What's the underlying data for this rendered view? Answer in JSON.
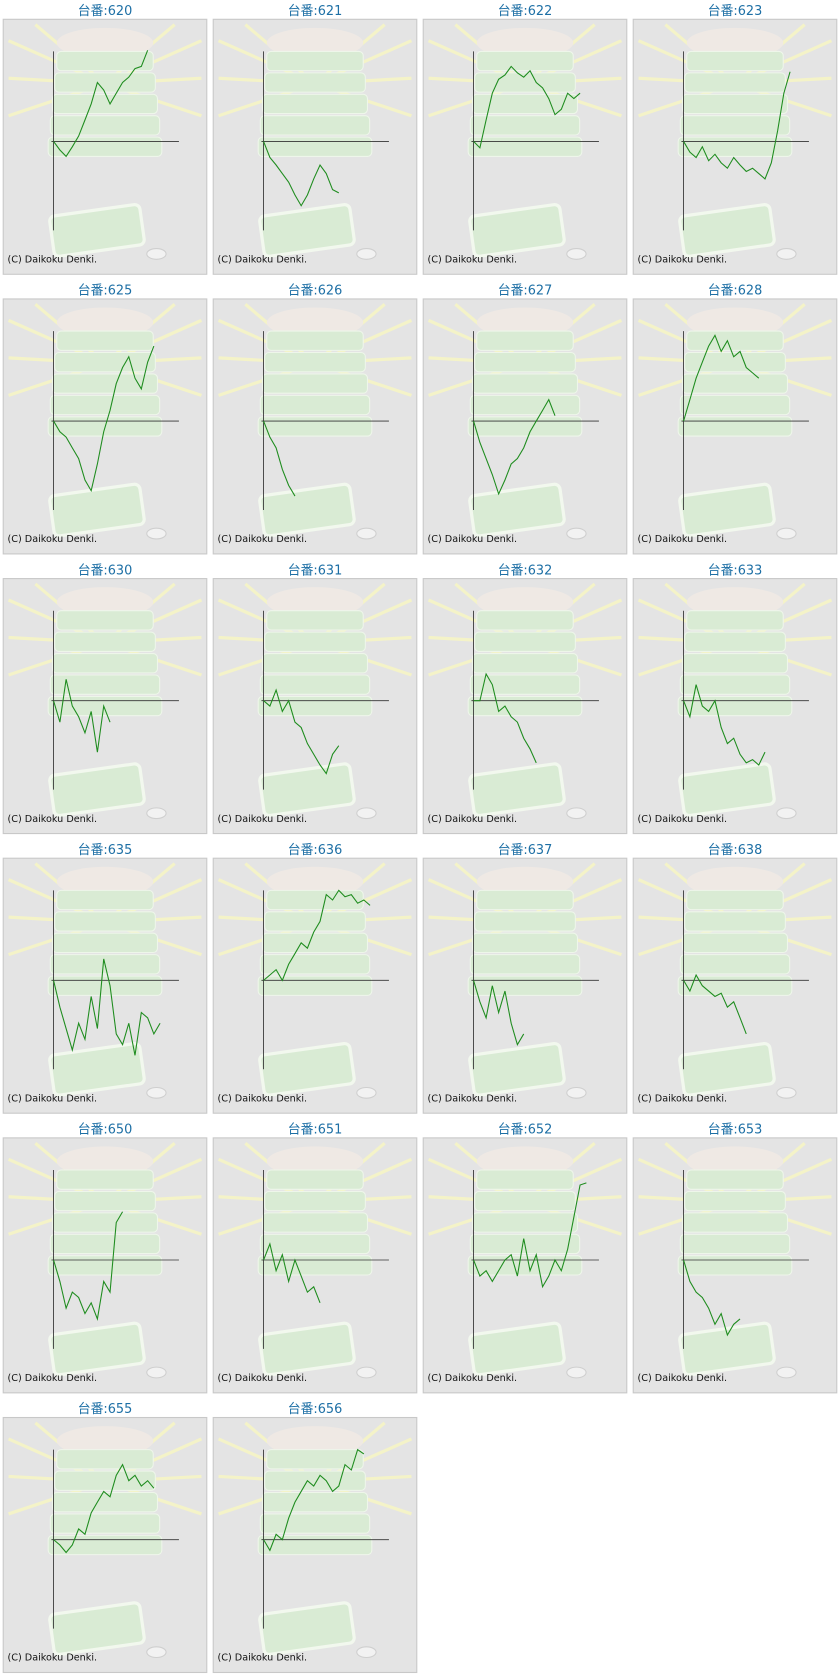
{
  "chart_data": [
    {
      "type": "line",
      "title": "台番:620",
      "credit": "(C) Daikoku Denki.",
      "color": "#1e8c1e",
      "xlim": [
        0,
        20
      ],
      "ylim": [
        -83,
        84
      ],
      "values": [
        0,
        -8,
        -14,
        -5,
        5,
        20,
        35,
        55,
        48,
        35,
        45,
        55,
        60,
        68,
        70,
        85
      ]
    },
    {
      "type": "line",
      "title": "台番:621",
      "credit": "(C) Daikoku Denki.",
      "color": "#1e8c1e",
      "xlim": [
        0,
        20
      ],
      "ylim": [
        -83,
        84
      ],
      "values": [
        0,
        -15,
        -22,
        -30,
        -38,
        -50,
        -60,
        -50,
        -35,
        -22,
        -30,
        -45,
        -48
      ]
    },
    {
      "type": "line",
      "title": "台番:622",
      "credit": "(C) Daikoku Denki.",
      "color": "#1e8c1e",
      "xlim": [
        0,
        20
      ],
      "ylim": [
        -83,
        84
      ],
      "values": [
        0,
        -6,
        20,
        45,
        58,
        62,
        70,
        64,
        60,
        66,
        55,
        50,
        40,
        25,
        30,
        45,
        40,
        45
      ]
    },
    {
      "type": "line",
      "title": "台番:623",
      "credit": "(C) Daikoku Denki.",
      "color": "#1e8c1e",
      "xlim": [
        0,
        20
      ],
      "ylim": [
        -83,
        84
      ],
      "values": [
        0,
        -10,
        -15,
        -5,
        -18,
        -12,
        -20,
        -25,
        -15,
        -22,
        -28,
        -25,
        -30,
        -35,
        -20,
        10,
        45,
        65
      ]
    },
    {
      "type": "line",
      "title": "台番:625",
      "credit": "(C) Daikoku Denki.",
      "color": "#1e8c1e",
      "xlim": [
        0,
        20
      ],
      "ylim": [
        -83,
        84
      ],
      "values": [
        0,
        -10,
        -15,
        -25,
        -35,
        -55,
        -65,
        -40,
        -10,
        10,
        35,
        50,
        60,
        40,
        30,
        55,
        70
      ]
    },
    {
      "type": "line",
      "title": "台番:626",
      "credit": "(C) Daikoku Denki.",
      "color": "#1e8c1e",
      "xlim": [
        0,
        20
      ],
      "ylim": [
        -83,
        84
      ],
      "values": [
        0,
        -15,
        -25,
        -45,
        -60,
        -70
      ]
    },
    {
      "type": "line",
      "title": "台番:627",
      "credit": "(C) Daikoku Denki.",
      "color": "#1e8c1e",
      "xlim": [
        0,
        20
      ],
      "ylim": [
        -83,
        84
      ],
      "values": [
        0,
        -20,
        -35,
        -50,
        -68,
        -55,
        -40,
        -35,
        -25,
        -10,
        0,
        10,
        20,
        5
      ]
    },
    {
      "type": "line",
      "title": "台番:628",
      "credit": "(C) Daikoku Denki.",
      "color": "#1e8c1e",
      "xlim": [
        0,
        20
      ],
      "ylim": [
        -83,
        84
      ],
      "values": [
        0,
        20,
        40,
        55,
        70,
        80,
        65,
        75,
        60,
        65,
        50,
        45,
        40
      ]
    },
    {
      "type": "line",
      "title": "台番:630",
      "credit": "(C) Daikoku Denki.",
      "color": "#1e8c1e",
      "xlim": [
        0,
        20
      ],
      "ylim": [
        -83,
        84
      ],
      "values": [
        0,
        -20,
        20,
        -5,
        -15,
        -30,
        -10,
        -48,
        -5,
        -20
      ]
    },
    {
      "type": "line",
      "title": "台番:631",
      "credit": "(C) Daikoku Denki.",
      "color": "#1e8c1e",
      "xlim": [
        0,
        20
      ],
      "ylim": [
        -83,
        84
      ],
      "values": [
        0,
        -5,
        10,
        -10,
        0,
        -20,
        -25,
        -40,
        -50,
        -60,
        -68,
        -50,
        -42
      ]
    },
    {
      "type": "line",
      "title": "台番:632",
      "credit": "(C) Daikoku Denki.",
      "color": "#1e8c1e",
      "xlim": [
        0,
        20
      ],
      "ylim": [
        -83,
        84
      ],
      "values": [
        0,
        0,
        25,
        15,
        -10,
        -5,
        -15,
        -20,
        -35,
        -45,
        -58
      ]
    },
    {
      "type": "line",
      "title": "台番:633",
      "credit": "(C) Daikoku Denki.",
      "color": "#1e8c1e",
      "xlim": [
        0,
        20
      ],
      "ylim": [
        -83,
        84
      ],
      "values": [
        0,
        -15,
        15,
        -5,
        -10,
        0,
        -25,
        -40,
        -35,
        -50,
        -58,
        -55,
        -60,
        -48
      ]
    },
    {
      "type": "line",
      "title": "台番:635",
      "credit": "(C) Daikoku Denki.",
      "color": "#1e8c1e",
      "xlim": [
        0,
        20
      ],
      "ylim": [
        -83,
        84
      ],
      "values": [
        0,
        -25,
        -45,
        -65,
        -40,
        -55,
        -15,
        -45,
        20,
        -5,
        -50,
        -60,
        -40,
        -70,
        -30,
        -35,
        -50,
        -40
      ]
    },
    {
      "type": "line",
      "title": "台番:636",
      "credit": "(C) Daikoku Denki.",
      "color": "#1e8c1e",
      "xlim": [
        0,
        20
      ],
      "ylim": [
        -83,
        84
      ],
      "values": [
        0,
        5,
        10,
        0,
        15,
        25,
        35,
        30,
        45,
        55,
        80,
        75,
        84,
        78,
        80,
        72,
        75,
        70
      ]
    },
    {
      "type": "line",
      "title": "台番:637",
      "credit": "(C) Daikoku Denki.",
      "color": "#1e8c1e",
      "xlim": [
        0,
        20
      ],
      "ylim": [
        -83,
        84
      ],
      "values": [
        0,
        -20,
        -35,
        -5,
        -30,
        -10,
        -40,
        -60,
        -50
      ]
    },
    {
      "type": "line",
      "title": "台番:638",
      "credit": "(C) Daikoku Denki.",
      "color": "#1e8c1e",
      "xlim": [
        0,
        20
      ],
      "ylim": [
        -83,
        84
      ],
      "values": [
        0,
        -10,
        5,
        -5,
        -10,
        -15,
        -12,
        -25,
        -20,
        -35,
        -50
      ]
    },
    {
      "type": "line",
      "title": "台番:650",
      "credit": "(C) Daikoku Denki.",
      "color": "#1e8c1e",
      "xlim": [
        0,
        20
      ],
      "ylim": [
        -83,
        84
      ],
      "values": [
        0,
        -20,
        -45,
        -30,
        -35,
        -50,
        -40,
        -55,
        -20,
        -30,
        35,
        45
      ]
    },
    {
      "type": "line",
      "title": "台番:651",
      "credit": "(C) Daikoku Denki.",
      "color": "#1e8c1e",
      "xlim": [
        0,
        20
      ],
      "ylim": [
        -83,
        84
      ],
      "values": [
        0,
        15,
        -10,
        5,
        -20,
        0,
        -15,
        -30,
        -25,
        -40
      ]
    },
    {
      "type": "line",
      "title": "台番:652",
      "credit": "(C) Daikoku Denki.",
      "color": "#1e8c1e",
      "xlim": [
        0,
        20
      ],
      "ylim": [
        -83,
        84
      ],
      "values": [
        0,
        -15,
        -10,
        -20,
        -10,
        0,
        5,
        -15,
        20,
        -10,
        5,
        -25,
        -15,
        0,
        -10,
        10,
        40,
        70,
        72
      ]
    },
    {
      "type": "line",
      "title": "台番:653",
      "credit": "(C) Daikoku Denki.",
      "color": "#1e8c1e",
      "xlim": [
        0,
        20
      ],
      "ylim": [
        -83,
        84
      ],
      "values": [
        0,
        -20,
        -30,
        -35,
        -45,
        -60,
        -50,
        -70,
        -60,
        -55
      ]
    },
    {
      "type": "line",
      "title": "台番:655",
      "credit": "(C) Daikoku Denki.",
      "color": "#1e8c1e",
      "xlim": [
        0,
        20
      ],
      "ylim": [
        -83,
        84
      ],
      "values": [
        0,
        -5,
        -12,
        -5,
        10,
        5,
        25,
        35,
        45,
        40,
        60,
        70,
        55,
        60,
        50,
        55,
        48
      ]
    },
    {
      "type": "line",
      "title": "台番:656",
      "credit": "(C) Daikoku Denki.",
      "color": "#1e8c1e",
      "xlim": [
        0,
        20
      ],
      "ylim": [
        -83,
        84
      ],
      "values": [
        0,
        -10,
        5,
        0,
        20,
        35,
        45,
        55,
        50,
        60,
        55,
        45,
        50,
        70,
        65,
        84,
        80
      ]
    }
  ]
}
